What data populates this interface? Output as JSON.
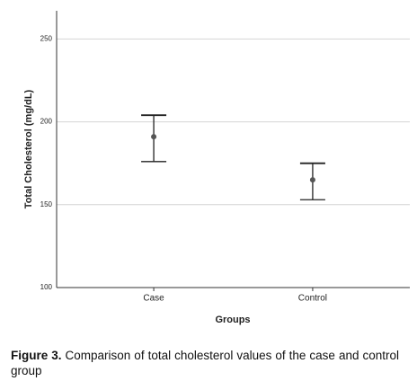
{
  "chart_data": {
    "type": "errorbar",
    "x_label": "Groups",
    "y_label": "Total Cholesterol (mg/dL)",
    "categories": [
      "Case",
      "Control"
    ],
    "values": [
      191,
      165
    ],
    "lower": [
      176,
      153
    ],
    "upper": [
      204,
      175
    ],
    "color": "#555555",
    "bar_color": "#222222",
    "ylim": [
      100,
      267
    ],
    "yticks": [
      100,
      150,
      200,
      250
    ],
    "grid": true
  },
  "caption": {
    "label": "Figure 3.",
    "text": "Comparison of total cholesterol values of the case and control group"
  }
}
